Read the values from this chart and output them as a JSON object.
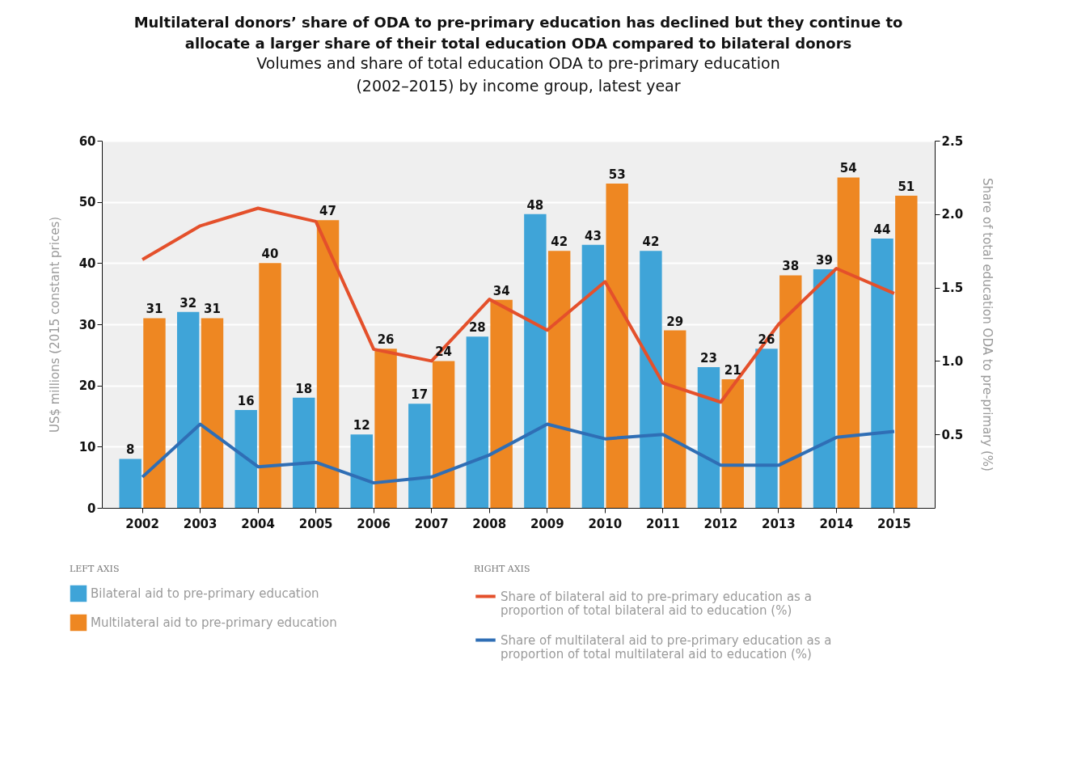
{
  "chart_data": {
    "type": "bar",
    "title": "Multilateral donors’ share of ODA to pre-primary education has declined but they continue to allocate a larger share of their total education ODA compared to bilateral donors",
    "subtitle": "Volumes and share of total education ODA to pre-primary education (2002–2015) by income group, latest year",
    "ylabel": "US$ millions (2015 constant prices)",
    "y2label": "Share of total education ODA to pre-primary (%)",
    "annotations": [
      "LEFT AXIS",
      "RIGHT AXIS"
    ],
    "categories": [
      "2002",
      "2003",
      "2004",
      "2005",
      "2006",
      "2007",
      "2008",
      "2009",
      "2010",
      "2011",
      "2012",
      "2013",
      "2014",
      "2015"
    ],
    "series": [
      {
        "name": "Bilateral aid to pre-primary education",
        "color": "#3fa4d8",
        "values": [
          8,
          32,
          16,
          18,
          12,
          17,
          28,
          48,
          43,
          42,
          23,
          26,
          39,
          44
        ],
        "value_labels": [
          "8",
          "32",
          "16",
          "18",
          "12",
          "17",
          "28",
          "48",
          "43",
          "42",
          "23",
          "26",
          "39",
          "44"
        ]
      },
      {
        "name": "Multilateral aid to pre-primary education",
        "color": "#ee8722",
        "values": [
          31,
          31,
          40,
          47,
          26,
          24,
          34,
          42,
          53,
          29,
          21,
          38,
          54,
          51
        ],
        "value_labels": [
          "31",
          "31",
          "40",
          "47",
          "26",
          "24",
          "34",
          "42",
          "53",
          "29",
          "21",
          "38",
          "54",
          "51"
        ]
      },
      {
        "name": "Share of bilateral aid to pre-primary education as a proportion of total bilateral aid to education (%)",
        "type": "line",
        "axis": "y2",
        "color": "#e4502b",
        "values": [
          1.69,
          1.92,
          2.04,
          1.95,
          1.08,
          1.0,
          1.42,
          1.21,
          1.54,
          0.85,
          0.72,
          1.25,
          1.63,
          1.46
        ]
      },
      {
        "name": "Share of multilateral aid to pre-primary education as a proportion of total multilateral aid to education (%)",
        "type": "line",
        "axis": "y2",
        "color": "#2f6eb5",
        "values": [
          0.21,
          0.57,
          0.28,
          0.31,
          0.17,
          0.21,
          0.36,
          0.57,
          0.47,
          0.5,
          0.29,
          0.29,
          0.48,
          0.52
        ]
      }
    ],
    "ylim": [
      0,
      60
    ],
    "yticks": [
      0,
      10,
      20,
      30,
      40,
      50,
      60
    ],
    "y2lim": [
      0,
      2.5
    ],
    "y2ticks": [
      0.5,
      {
        "value": 1,
        "label": "1.0"
      },
      1.5,
      {
        "value": 2,
        "label": "2.0"
      },
      2.5
    ],
    "grid": "y",
    "legend": "bottom",
    "marker": "none",
    "line_style": "solid"
  }
}
